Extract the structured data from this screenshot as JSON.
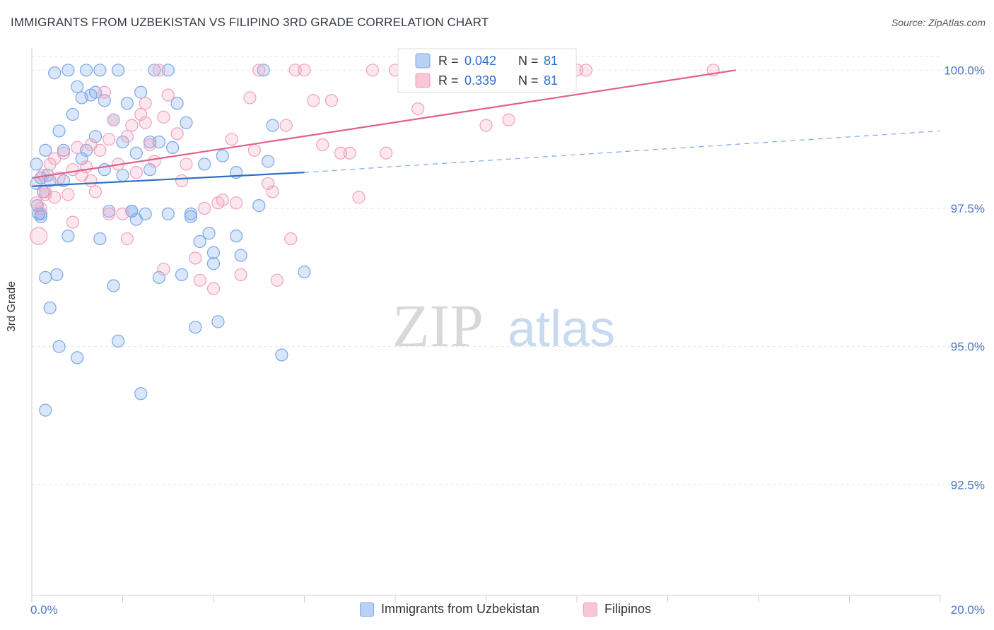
{
  "chart_data": {
    "type": "scatter",
    "title": "IMMIGRANTS FROM UZBEKISTAN VS FILIPINO 3RD GRADE CORRELATION CHART",
    "source": "Source: ZipAtlas.com",
    "xlabel": "",
    "ylabel": "3rd Grade",
    "xlim": [
      0,
      20
    ],
    "ylim": [
      90.5,
      100.4
    ],
    "x_tick_labels": [
      "0.0%",
      "20.0%"
    ],
    "y_ticks": [
      92.5,
      95.0,
      97.5,
      100.0
    ],
    "y_tick_labels": [
      "92.5%",
      "95.0%",
      "97.5%",
      "100.0%"
    ],
    "grid": true,
    "legend_position": "top-center",
    "watermark": "ZIPatlas",
    "series": [
      {
        "name": "Immigrants from Uzbekistan",
        "color": "#7aa7e8",
        "line_color": "#2f6fc8",
        "R": "0.042",
        "N": "81",
        "trend": {
          "x0": 0.0,
          "y0": 97.9,
          "x1": 6.0,
          "y1": 98.15,
          "dash_x1": 20.0,
          "dash_y1": 98.9
        },
        "x": [
          0.1,
          0.12,
          0.1,
          0.15,
          0.2,
          0.25,
          0.3,
          0.2,
          0.35,
          0.4,
          0.3,
          0.5,
          0.6,
          0.55,
          0.7,
          0.8,
          0.9,
          1.0,
          1.1,
          1.2,
          1.3,
          1.4,
          1.5,
          1.6,
          1.7,
          1.8,
          1.9,
          2.0,
          2.1,
          2.2,
          2.3,
          2.4,
          2.5,
          2.6,
          2.7,
          2.8,
          3.0,
          3.1,
          3.2,
          3.3,
          3.4,
          3.5,
          3.6,
          3.7,
          3.8,
          3.9,
          4.0,
          4.1,
          4.2,
          4.5,
          4.6,
          5.0,
          5.1,
          5.2,
          5.3,
          5.5,
          6.0,
          0.2,
          0.4,
          0.6,
          0.8,
          1.0,
          1.2,
          1.4,
          1.6,
          1.8,
          2.0,
          2.2,
          2.4,
          2.6,
          2.8,
          3.0,
          3.5,
          4.0,
          4.5,
          0.3,
          0.7,
          1.1,
          1.5,
          1.9,
          2.3
        ],
        "y": [
          97.95,
          97.55,
          98.3,
          97.4,
          98.05,
          97.8,
          98.55,
          97.35,
          98.1,
          98.0,
          96.25,
          99.95,
          98.9,
          96.3,
          98.55,
          100.0,
          99.2,
          99.7,
          98.4,
          100.0,
          99.55,
          98.8,
          100.0,
          98.2,
          97.45,
          96.1,
          95.1,
          98.7,
          99.4,
          97.45,
          97.3,
          94.15,
          97.4,
          98.7,
          100.0,
          96.25,
          97.4,
          98.6,
          99.4,
          96.3,
          99.05,
          97.35,
          95.35,
          96.9,
          98.3,
          97.05,
          96.5,
          95.45,
          98.45,
          97.0,
          96.65,
          97.55,
          100.0,
          98.35,
          99.0,
          94.85,
          96.35,
          97.4,
          95.7,
          95.0,
          97.0,
          94.8,
          98.55,
          99.6,
          99.45,
          99.1,
          98.1,
          97.45,
          99.6,
          98.2,
          98.7,
          100.0,
          97.4,
          96.7,
          98.15,
          93.85,
          98.0,
          99.5,
          96.95,
          100.0,
          98.5
        ]
      },
      {
        "name": "Filipinos",
        "color": "#f2a0bd",
        "line_color": "#e0608c",
        "R": "0.339",
        "N": "81",
        "trend": {
          "x0": 0.0,
          "y0": 98.05,
          "x1": 15.5,
          "y1": 100.0
        },
        "x": [
          0.1,
          0.15,
          0.2,
          0.3,
          0.4,
          0.5,
          0.6,
          0.7,
          0.8,
          0.9,
          1.0,
          1.1,
          1.2,
          1.3,
          1.4,
          1.5,
          1.6,
          1.7,
          1.8,
          1.9,
          2.0,
          2.1,
          2.2,
          2.3,
          2.4,
          2.5,
          2.6,
          2.7,
          2.8,
          2.9,
          3.0,
          3.2,
          3.4,
          3.6,
          3.8,
          4.0,
          4.2,
          4.4,
          4.6,
          4.8,
          5.0,
          5.2,
          5.4,
          5.6,
          5.8,
          6.0,
          6.2,
          6.4,
          6.6,
          6.8,
          7.0,
          7.2,
          7.5,
          7.8,
          8.0,
          8.5,
          9.0,
          9.5,
          10.0,
          10.5,
          11.0,
          11.5,
          12.0,
          12.2,
          0.3,
          0.5,
          0.9,
          1.3,
          1.7,
          2.1,
          2.5,
          2.9,
          3.3,
          3.7,
          4.1,
          4.5,
          4.9,
          5.3,
          5.7,
          0.25,
          15.0
        ],
        "y": [
          97.6,
          97.0,
          97.5,
          97.8,
          98.3,
          97.7,
          98.05,
          98.5,
          97.75,
          98.2,
          98.6,
          98.1,
          98.25,
          98.65,
          97.8,
          98.55,
          99.6,
          98.75,
          99.1,
          98.3,
          97.4,
          98.8,
          99.0,
          98.15,
          99.2,
          99.4,
          98.65,
          98.35,
          100.0,
          99.15,
          99.55,
          98.85,
          98.3,
          96.6,
          97.5,
          96.05,
          97.65,
          98.75,
          96.3,
          99.5,
          100.0,
          97.95,
          96.2,
          99.0,
          100.0,
          100.0,
          99.45,
          98.65,
          99.45,
          98.5,
          98.5,
          97.7,
          100.0,
          98.5,
          100.0,
          99.3,
          99.95,
          100.0,
          99.0,
          99.1,
          100.0,
          100.0,
          100.0,
          100.0,
          97.75,
          98.4,
          97.25,
          98.0,
          97.4,
          96.95,
          99.05,
          96.4,
          98.0,
          96.2,
          97.6,
          97.6,
          98.55,
          97.8,
          96.95,
          98.1,
          100.0
        ]
      }
    ]
  }
}
